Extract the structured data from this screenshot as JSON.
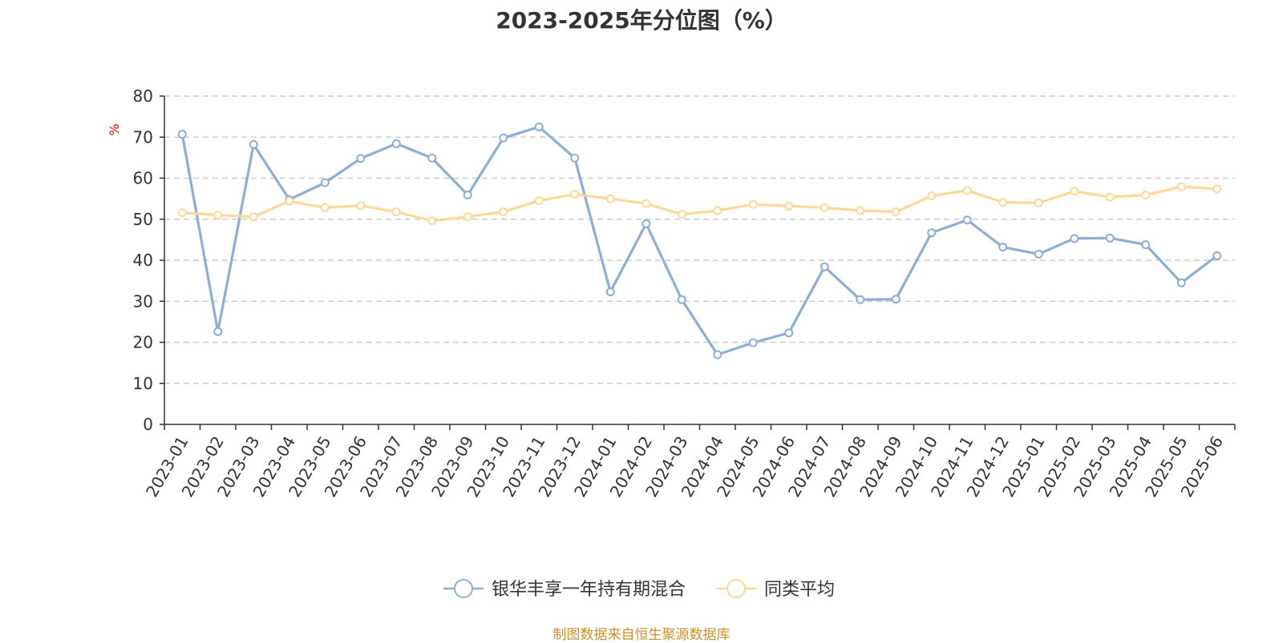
{
  "chart_data": {
    "type": "line",
    "title": "2023-2025年分位图（%）",
    "ylabel": "%",
    "ylim": [
      0,
      80
    ],
    "yticks": [
      0,
      10,
      20,
      30,
      40,
      50,
      60,
      70,
      80
    ],
    "grid": true,
    "legend_position": "bottom",
    "categories": [
      "2023-01",
      "2023-02",
      "2023-03",
      "2023-04",
      "2023-05",
      "2023-06",
      "2023-07",
      "2023-08",
      "2023-09",
      "2023-10",
      "2023-11",
      "2023-12",
      "2024-01",
      "2024-02",
      "2024-03",
      "2024-04",
      "2024-05",
      "2024-06",
      "2024-07",
      "2024-08",
      "2024-09",
      "2024-10",
      "2024-11",
      "2024-12",
      "2025-01",
      "2025-02",
      "2025-03",
      "2025-04",
      "2025-05",
      "2025-06"
    ],
    "series": [
      {
        "name": "银华丰享一年持有期混合",
        "color": "#8eaed8",
        "values": [
          70.7,
          22.6,
          68.2,
          54.8,
          58.9,
          64.8,
          68.4,
          64.9,
          55.9,
          69.8,
          72.5,
          64.9,
          32.3,
          48.9,
          30.4,
          17.0,
          19.9,
          22.3,
          38.4,
          30.4,
          30.5,
          46.7,
          49.8,
          43.2,
          41.5,
          45.3,
          45.4,
          43.8,
          34.5,
          41.1
        ]
      },
      {
        "name": "同类平均",
        "color": "#fcd996",
        "values": [
          51.6,
          51.0,
          50.6,
          54.4,
          52.8,
          53.3,
          51.8,
          49.6,
          50.6,
          51.8,
          54.5,
          56.1,
          55.0,
          53.8,
          51.2,
          52.1,
          53.6,
          53.2,
          52.8,
          52.1,
          51.8,
          55.7,
          57.0,
          54.1,
          54.0,
          56.8,
          55.4,
          55.9,
          57.9,
          57.4
        ]
      }
    ]
  },
  "source_note": "制图数据来自恒生聚源数据库"
}
